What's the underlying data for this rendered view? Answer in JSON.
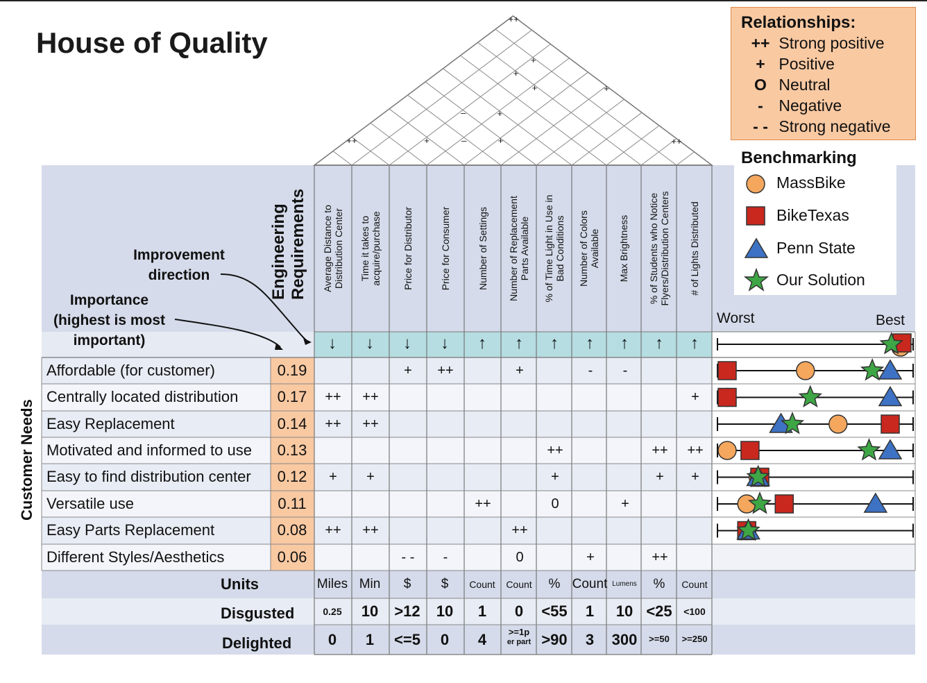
{
  "title": "House of Quality",
  "legend_relationships": {
    "header": "Relationships:",
    "items": [
      {
        "symbol": "++",
        "label": "Strong positive"
      },
      {
        "symbol": "+",
        "label": "Positive"
      },
      {
        "symbol": "O",
        "label": "Neutral"
      },
      {
        "symbol": "-",
        "label": "Negative"
      },
      {
        "symbol": "- -",
        "label": "Strong negative"
      }
    ]
  },
  "legend_benchmarking": {
    "header": "Benchmarking",
    "items": [
      {
        "shape": "circle",
        "label": "MassBike",
        "color": "#f4a75d"
      },
      {
        "shape": "square",
        "label": "BikeTexas",
        "color": "#c8281e"
      },
      {
        "shape": "triangle",
        "label": "Penn State",
        "color": "#3d72c4"
      },
      {
        "shape": "star",
        "label": "Our Solution",
        "color": "#3ea645"
      }
    ]
  },
  "annotations": {
    "engineering_requirements": "Engineering Requirements",
    "improvement_direction_1": "Improvement",
    "improvement_direction_2": "direction",
    "importance_1": "Importance",
    "importance_2": "(highest is most",
    "importance_3": "important)",
    "customer_needs": "Customer Needs",
    "worst": "Worst",
    "best": "Best"
  },
  "engineering_requirements": [
    {
      "label": "Average Distance to\nDistribution Center",
      "direction": "↓",
      "unit": "Miles",
      "disgusted": "0.25",
      "delighted": "0"
    },
    {
      "label": "Time it takes to\nacquire/purchase",
      "direction": "↓",
      "unit": "Min",
      "disgusted": "10",
      "delighted": "1"
    },
    {
      "label": "Price for Distributor",
      "direction": "↓",
      "unit": "$",
      "disgusted": ">12",
      "delighted": "<=5"
    },
    {
      "label": "Price for Consumer",
      "direction": "↓",
      "unit": "$",
      "disgusted": "10",
      "delighted": "0"
    },
    {
      "label": "Number of Settings",
      "direction": "↑",
      "unit": "Count",
      "disgusted": "1",
      "delighted": "4"
    },
    {
      "label": "Number of Replacement\nParts Available",
      "direction": "↑",
      "unit": "Count",
      "disgusted": "0",
      "delighted": ">=1p",
      "delighted_sub": "er part"
    },
    {
      "label": "% of Time Light in Use in\nBad Conditions",
      "direction": "↑",
      "unit": "%",
      "disgusted": "<55",
      "delighted": ">90"
    },
    {
      "label": "Number of Colors\nAvailable",
      "direction": "↑",
      "unit": "Count",
      "disgusted": "1",
      "delighted": "3"
    },
    {
      "label": "Max Brightness",
      "direction": "↑",
      "unit": "Lumens",
      "disgusted": "10",
      "delighted": "300"
    },
    {
      "label": "% of Students who Notice\nFlyers/Distribution Centers",
      "direction": "↑",
      "unit": "%",
      "disgusted": "<25",
      "delighted": ">=50"
    },
    {
      "label": "# of Lights Distributed",
      "direction": "↑",
      "unit": "Count",
      "disgusted": "<100",
      "delighted": ">=250"
    }
  ],
  "row_labels": {
    "units": "Units",
    "disgusted": "Disgusted",
    "delighted": "Delighted"
  },
  "customer_needs": [
    {
      "label": "Affordable (for customer)",
      "importance": "0.19",
      "relations": [
        "",
        "",
        "+",
        "++",
        "",
        "+",
        "",
        "-",
        "-",
        "",
        ""
      ],
      "bench": {
        "massbike": 0.48,
        "biketexas": 0.0,
        "pennstate": 1.0,
        "ours": 0.89
      }
    },
    {
      "label": "Centrally located distribution",
      "importance": "0.17",
      "relations": [
        "++",
        "++",
        "",
        "",
        "",
        "",
        "",
        "",
        "",
        "",
        "+"
      ],
      "bench": {
        "massbike": 0.0,
        "biketexas": 0.0,
        "pennstate": 1.0,
        "ours": 0.51
      }
    },
    {
      "label": "Easy Replacement",
      "importance": "0.14",
      "relations": [
        "++",
        "++",
        "",
        "",
        "",
        "",
        "",
        "",
        "",
        "",
        ""
      ],
      "bench": {
        "massbike": 0.68,
        "biketexas": 1.0,
        "pennstate": 0.33,
        "ours": 0.4
      }
    },
    {
      "label": "Motivated and informed to use",
      "importance": "0.13",
      "relations": [
        "",
        "",
        "",
        "",
        "",
        "",
        "++",
        "",
        "",
        "++",
        "++"
      ],
      "bench": {
        "massbike": 0.0,
        "biketexas": 0.14,
        "pennstate": 1.0,
        "ours": 0.87
      }
    },
    {
      "label": "Easy to find distribution center",
      "importance": "0.12",
      "relations": [
        "+",
        "+",
        "",
        "",
        "",
        "",
        "+",
        "",
        "",
        "+",
        "+"
      ],
      "bench": {
        "massbike": 0.19,
        "biketexas": 0.2,
        "pennstate": 0.19,
        "ours": 0.19
      }
    },
    {
      "label": "Versatile use",
      "importance": "0.11",
      "relations": [
        "",
        "",
        "",
        "",
        "++",
        "",
        "0",
        "",
        "+",
        "",
        ""
      ],
      "bench": {
        "massbike": 0.12,
        "biketexas": 0.35,
        "pennstate": 0.91,
        "ours": 0.2
      }
    },
    {
      "label": "Easy Parts Replacement",
      "importance": "0.08",
      "relations": [
        "++",
        "++",
        "",
        "",
        "",
        "++",
        "",
        "",
        "",
        "",
        ""
      ],
      "bench": {
        "massbike": 0.12,
        "biketexas": 0.12,
        "pennstate": 0.13,
        "ours": 0.13
      }
    },
    {
      "label": "Different Styles/Aesthetics",
      "importance": "0.06",
      "relations": [
        "",
        "",
        "- -",
        "-",
        "",
        "0",
        "",
        "+",
        "",
        "++",
        ""
      ],
      "bench": null
    }
  ],
  "roof_marks": [
    {
      "a": 0,
      "b": 10,
      "mark": "++"
    },
    {
      "a": 0,
      "b": 1,
      "mark": "++"
    },
    {
      "a": 2,
      "b": 3,
      "mark": "+"
    },
    {
      "a": 3,
      "b": 4,
      "mark": "–"
    },
    {
      "a": 4,
      "b": 5,
      "mark": "+"
    },
    {
      "a": 9,
      "b": 10,
      "mark": "++"
    },
    {
      "a": 2,
      "b": 5,
      "mark": "–"
    },
    {
      "a": 3,
      "b": 6,
      "mark": "+"
    },
    {
      "a": 3,
      "b": 8,
      "mark": "+"
    },
    {
      "a": 2,
      "b": 8,
      "mark": "+"
    },
    {
      "a": 5,
      "b": 10,
      "mark": "+"
    },
    {
      "a": 2,
      "b": 9,
      "mark": "+"
    }
  ],
  "best_marker_ours": 0.99
}
